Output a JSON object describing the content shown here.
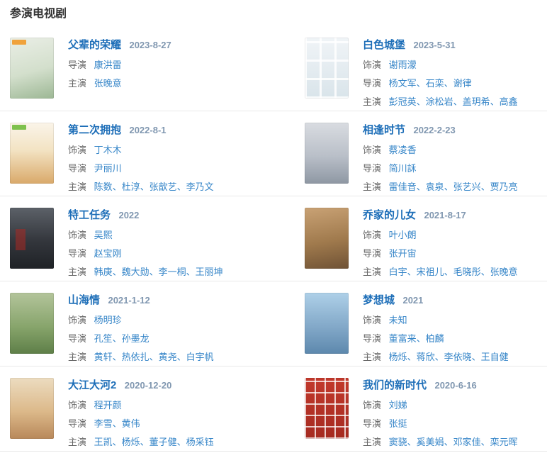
{
  "page": {
    "section_title": "参演电视剧"
  },
  "colors": {
    "heading": "#333333",
    "title_link": "#1d6eb8",
    "date_text": "#8097b0",
    "credit_label": "#666666",
    "name_link": "#3585c8",
    "divider": "#e9e9e9"
  },
  "entries": [
    {
      "title": "父辈的荣耀",
      "date": "2023-8-27",
      "credits": [
        {
          "label": "导演",
          "names": "康洪雷"
        },
        {
          "label": "主演",
          "names": "张晚意"
        }
      ]
    },
    {
      "title": "白色城堡",
      "date": "2023-5-31",
      "credits": [
        {
          "label": "饰演",
          "names": "谢雨濛"
        },
        {
          "label": "导演",
          "names": "杨文军、石栾、谢律"
        },
        {
          "label": "主演",
          "names": "彭冠英、涂松岩、盖玥希、高鑫"
        }
      ]
    },
    {
      "title": "第二次拥抱",
      "date": "2022-8-1",
      "credits": [
        {
          "label": "饰演",
          "names": "丁木木"
        },
        {
          "label": "导演",
          "names": "尹丽川"
        },
        {
          "label": "主演",
          "names": "陈数、杜淳、张歆艺、李乃文"
        }
      ]
    },
    {
      "title": "相逢时节",
      "date": "2022-2-23",
      "credits": [
        {
          "label": "饰演",
          "names": "蔡凌香"
        },
        {
          "label": "导演",
          "names": "简川訸"
        },
        {
          "label": "主演",
          "names": "雷佳音、袁泉、张艺兴、贾乃亮"
        }
      ]
    },
    {
      "title": "特工任务",
      "date": "2022",
      "credits": [
        {
          "label": "饰演",
          "names": "吴熙"
        },
        {
          "label": "导演",
          "names": "赵宝刚"
        },
        {
          "label": "主演",
          "names": "韩庚、魏大勋、李一桐、王丽坤"
        }
      ]
    },
    {
      "title": "乔家的儿女",
      "date": "2021-8-17",
      "credits": [
        {
          "label": "饰演",
          "names": "叶小朗"
        },
        {
          "label": "导演",
          "names": "张开宙"
        },
        {
          "label": "主演",
          "names": "白宇、宋祖儿、毛晓彤、张晚意"
        }
      ]
    },
    {
      "title": "山海情",
      "date": "2021-1-12",
      "credits": [
        {
          "label": "饰演",
          "names": "杨明珍"
        },
        {
          "label": "导演",
          "names": "孔笙、孙墨龙"
        },
        {
          "label": "主演",
          "names": "黄轩、热依扎、黄尧、白宇帆"
        }
      ]
    },
    {
      "title": "梦想城",
      "date": "2021",
      "credits": [
        {
          "label": "饰演",
          "names": "未知"
        },
        {
          "label": "导演",
          "names": "董富来、柏麟"
        },
        {
          "label": "主演",
          "names": "杨烁、蒋欣、李依晓、王自健"
        }
      ]
    },
    {
      "title": "大江大河2",
      "date": "2020-12-20",
      "credits": [
        {
          "label": "饰演",
          "names": "程开颜"
        },
        {
          "label": "导演",
          "names": "李雪、黄伟"
        },
        {
          "label": "主演",
          "names": "王凯、杨烁、董子健、杨采钰"
        }
      ]
    },
    {
      "title": "我们的新时代",
      "date": "2020-6-16",
      "credits": [
        {
          "label": "饰演",
          "names": "刘娣"
        },
        {
          "label": "导演",
          "names": "张挺"
        },
        {
          "label": "主演",
          "names": "窦骁、奚美娟、邓家佳、栾元晖"
        }
      ]
    }
  ]
}
